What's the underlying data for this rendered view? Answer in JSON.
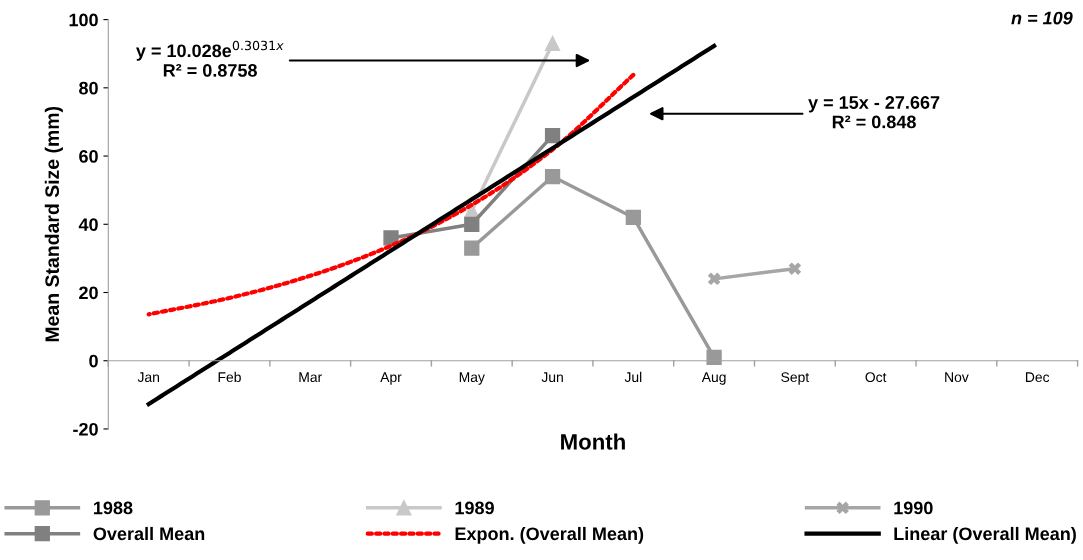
{
  "chart_data": {
    "type": "line",
    "xlabel": "Month",
    "ylabel": "Mean Standard Size (mm)",
    "categories": [
      "Jan",
      "Feb",
      "Mar",
      "Apr",
      "May",
      "Jun",
      "Jul",
      "Aug",
      "Sept",
      "Oct",
      "Nov",
      "Dec"
    ],
    "ylim": [
      -20,
      100
    ],
    "yticks": [
      -20,
      0,
      20,
      40,
      60,
      80,
      100
    ],
    "grid": false,
    "legend": "bottom",
    "series": [
      {
        "name": "1988",
        "color": "#999999",
        "marker": "square",
        "values": [
          null,
          null,
          null,
          null,
          33,
          54,
          42,
          1,
          null,
          null,
          null,
          null
        ]
      },
      {
        "name": "1989",
        "color": "#c8c8c8",
        "marker": "triangle",
        "values": [
          null,
          null,
          null,
          null,
          44,
          93,
          null,
          null,
          null,
          null,
          null,
          null
        ]
      },
      {
        "name": "1990",
        "color": "#a6a6a6",
        "marker": "cross",
        "values": [
          null,
          null,
          null,
          null,
          null,
          null,
          null,
          24,
          27,
          null,
          null,
          null
        ]
      },
      {
        "name": "Overall Mean",
        "color": "#808080",
        "marker": "square",
        "values": [
          null,
          null,
          null,
          36,
          40,
          66,
          null,
          null,
          null,
          null,
          null,
          null
        ]
      },
      {
        "name": "Expon. (Overall Mean)",
        "color": "#ff0000",
        "marker": "none",
        "line_style": "dotted",
        "values": [
          13.6,
          18.4,
          24.9,
          33.7,
          45.7,
          61.9,
          83.8,
          null,
          null,
          null,
          null,
          null
        ]
      },
      {
        "name": "Linear (Overall Mean)",
        "color": "#000000",
        "marker": "none",
        "line_style": "solid",
        "values": [
          -12.7,
          2.3,
          17.3,
          32.3,
          47.3,
          62.3,
          77.3,
          92.3,
          null,
          null,
          null,
          null
        ]
      }
    ],
    "annotations": [
      "y = 10.028e$^{0.3031x}$\nR² = 0.8758",
      "y = 15x - 27.667\nR² = 0.848",
      "n = 109"
    ]
  }
}
